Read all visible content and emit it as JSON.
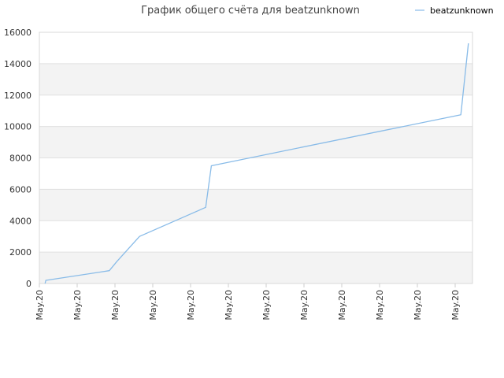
{
  "chart_data": {
    "type": "line",
    "title": "График общего счёта для beatzunknown",
    "xlabel": "",
    "ylabel": "",
    "ylim": [
      0,
      16000
    ],
    "y_ticks": [
      "0",
      "2000",
      "4000",
      "6000",
      "8000",
      "10000",
      "12000",
      "14000",
      "16000"
    ],
    "x_tick_labels": [
      "May.20",
      "May.20",
      "May.20",
      "May.20",
      "May.20",
      "May.20",
      "May.20",
      "May.20",
      "May.20",
      "May.20",
      "May.20",
      "May.20"
    ],
    "grid": true,
    "legend_position": "top-right",
    "series": [
      {
        "name": "beatzunknown",
        "color": "#88bbe8",
        "points": [
          [
            0.15,
            0
          ],
          [
            0.17,
            200
          ],
          [
            1.85,
            820
          ],
          [
            2.05,
            1400
          ],
          [
            2.65,
            3000
          ],
          [
            4.4,
            4850
          ],
          [
            4.55,
            7500
          ],
          [
            11.15,
            10750
          ],
          [
            11.35,
            15300
          ]
        ]
      }
    ]
  }
}
